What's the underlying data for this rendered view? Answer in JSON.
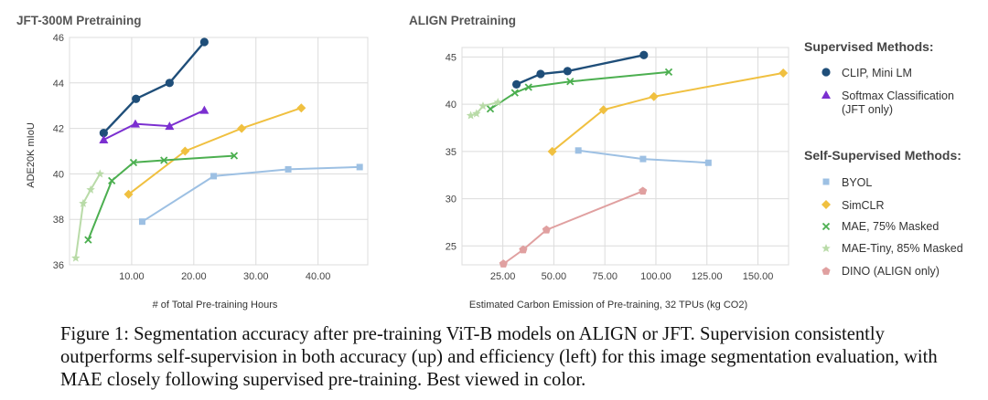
{
  "colors": {
    "clip": "#1f4e79",
    "softmax": "#7b2fd0",
    "byol": "#9dc0e3",
    "simclr": "#f0c040",
    "mae": "#4caf50",
    "mae_tiny": "#b9dba8",
    "dino": "#e0a0a0"
  },
  "legend": {
    "supervised_title": "Supervised Methods:",
    "self_supervised_title": "Self-Supervised Methods:",
    "items": [
      {
        "key": "clip",
        "label": "CLIP, Mini LM",
        "marker": "circle"
      },
      {
        "key": "softmax",
        "label": "Softmax Classification",
        "label2": "(JFT only)",
        "marker": "triangle"
      },
      {
        "key": "byol",
        "label": "BYOL",
        "marker": "square"
      },
      {
        "key": "simclr",
        "label": "SimCLR",
        "marker": "diamond"
      },
      {
        "key": "mae",
        "label": "MAE, 75% Masked",
        "marker": "x"
      },
      {
        "key": "mae_tiny",
        "label": "MAE-Tiny, 85% Masked",
        "marker": "star"
      },
      {
        "key": "dino",
        "label": "DINO (ALIGN only)",
        "marker": "pentagon"
      }
    ]
  },
  "caption": "Figure 1: Segmentation accuracy after pre-training ViT-B models on ALIGN or JFT. Supervision consistently outperforms self-supervision in both accuracy (up) and efficiency (left) for this image segmentation evaluation, with MAE closely following supervised pre-training. Best viewed in color.",
  "chart_data": [
    {
      "type": "line",
      "title": "JFT-300M Pretraining",
      "xlabel": "# of Total Pre-training Hours",
      "ylabel": "ADE20K mIoU",
      "xlim": [
        0,
        48
      ],
      "ylim": [
        36,
        46
      ],
      "xticks": [
        10,
        20,
        30,
        40
      ],
      "xtick_labels": [
        "10.00",
        "20.00",
        "30.00",
        "40.00"
      ],
      "yticks": [
        36,
        38,
        40,
        42,
        44,
        46
      ],
      "grid": true,
      "series": [
        {
          "key": "clip",
          "name": "CLIP, Mini LM",
          "x": [
            5.5,
            10.7,
            16.1,
            21.7
          ],
          "y": [
            41.8,
            43.3,
            44.0,
            45.8
          ]
        },
        {
          "key": "softmax",
          "name": "Softmax Classification",
          "x": [
            5.5,
            10.6,
            16.1,
            21.7
          ],
          "y": [
            41.5,
            42.2,
            42.1,
            42.8
          ]
        },
        {
          "key": "byol",
          "name": "BYOL",
          "x": [
            11.7,
            23.2,
            35.2,
            46.7
          ],
          "y": [
            37.9,
            39.9,
            40.2,
            40.3
          ]
        },
        {
          "key": "simclr",
          "name": "SimCLR",
          "x": [
            9.5,
            18.6,
            27.7,
            37.3
          ],
          "y": [
            39.1,
            41.0,
            42.0,
            42.9
          ]
        },
        {
          "key": "mae",
          "name": "MAE, 75% Masked",
          "x": [
            3.0,
            6.8,
            10.3,
            15.2,
            26.5
          ],
          "y": [
            37.1,
            39.7,
            40.5,
            40.6,
            40.8
          ]
        },
        {
          "key": "mae_tiny",
          "name": "MAE-Tiny, 85% Masked",
          "x": [
            1.0,
            2.2,
            3.4,
            4.9
          ],
          "y": [
            36.3,
            38.7,
            39.3,
            40.0
          ]
        }
      ]
    },
    {
      "type": "line",
      "title": "ALIGN Pretraining",
      "xlabel": "Estimated Carbon Emission of Pre-training, 32 TPUs (kg CO2)",
      "ylabel": "",
      "xlim": [
        5,
        165
      ],
      "ylim": [
        23,
        46
      ],
      "xticks": [
        25,
        50,
        75,
        100,
        125,
        150
      ],
      "xtick_labels": [
        "25.00",
        "50.00",
        "75.00",
        "100.00",
        "125.00",
        "150.00"
      ],
      "yticks": [
        25,
        30,
        35,
        40,
        45
      ],
      "grid": true,
      "series": [
        {
          "key": "clip",
          "name": "CLIP, Mini LM",
          "x": [
            31.7,
            43.5,
            56.7,
            94.1
          ],
          "y": [
            42.1,
            43.2,
            43.5,
            45.2
          ]
        },
        {
          "key": "byol",
          "name": "BYOL",
          "x": [
            62.0,
            93.7,
            125.7
          ],
          "y": [
            35.1,
            34.2,
            33.8
          ]
        },
        {
          "key": "simclr",
          "name": "SimCLR",
          "x": [
            49.2,
            74.3,
            99.0,
            162.4
          ],
          "y": [
            35.0,
            39.4,
            40.8,
            43.3
          ]
        },
        {
          "key": "mae",
          "name": "MAE, 75% Masked",
          "x": [
            18.9,
            30.9,
            37.6,
            58.0,
            106.3
          ],
          "y": [
            39.5,
            41.2,
            41.8,
            42.4,
            43.4
          ]
        },
        {
          "key": "mae_tiny",
          "name": "MAE-Tiny, 85% Masked",
          "x": [
            9.3,
            12.1,
            15.3,
            22.6
          ],
          "y": [
            38.8,
            39.0,
            39.8,
            40.2
          ]
        },
        {
          "key": "dino",
          "name": "DINO (ALIGN only)",
          "x": [
            25.3,
            35.0,
            46.4,
            93.6
          ],
          "y": [
            23.1,
            24.6,
            26.7,
            30.8
          ]
        }
      ]
    }
  ]
}
